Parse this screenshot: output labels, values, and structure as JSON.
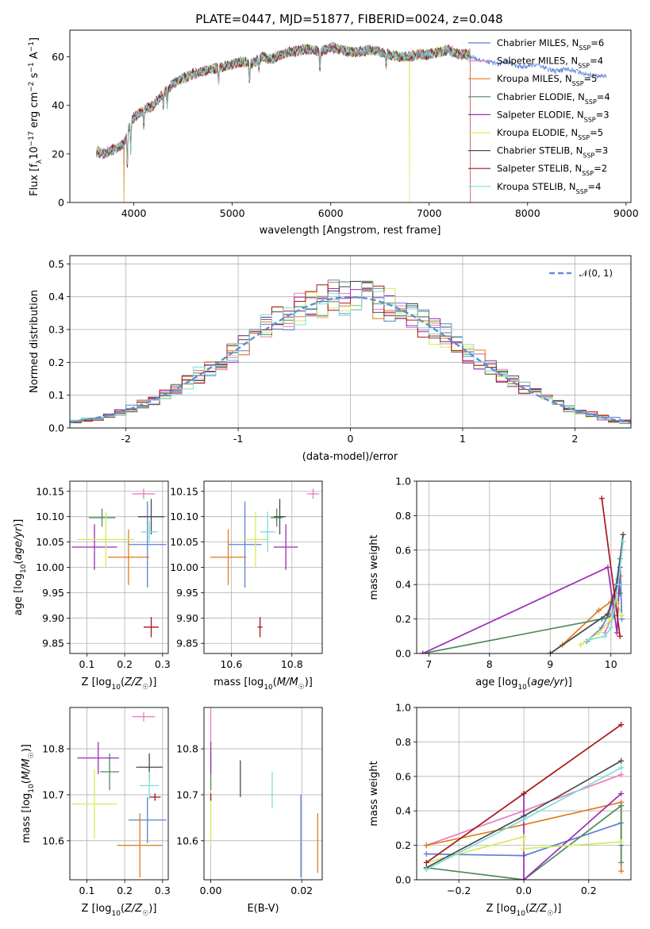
{
  "title": "PLATE=0447, MJD=51877, FIBERID=0024, z=0.048",
  "colors": [
    "#5b7fd6",
    "#e97ec0",
    "#e07c1a",
    "#4f8a5d",
    "#9b2bb5",
    "#d6ea5c",
    "#4a4a4a",
    "#a8161b",
    "#7fdcdc"
  ],
  "legend": [
    "Chabrier MILES, N_SSP=6",
    "Salpeter MILES, N_SSP=4",
    "Kroupa MILES, N_SSP=5",
    "Chabrier ELODIE, N_SSP=4",
    "Salpeter ELODIE, N_SSP=3",
    "Kroupa ELODIE, N_SSP=5",
    "Chabrier STELIB, N_SSP=3",
    "Salpeter STELIB, N_SSP=2",
    "Kroupa STELIB, N_SSP=4"
  ],
  "chart_data": [
    {
      "type": "line",
      "id": "spectrum",
      "xlabel": "wavelength [Angstrom, rest frame]",
      "ylabel": "Flux [f_λ10^-17 erg cm^-2 s^-1 A^-1]",
      "xlim": [
        3350,
        9050
      ],
      "ylim": [
        0,
        71
      ],
      "xticks": [
        4000,
        5000,
        6000,
        7000,
        8000,
        9000
      ],
      "yticks": [
        0,
        20,
        40,
        60
      ],
      "grid": false,
      "legend_position": "upper-right",
      "continuum": {
        "x": [
          3620,
          3700,
          3800,
          3900,
          3950,
          4000,
          4100,
          4200,
          4300,
          4400,
          4500,
          4600,
          4700,
          4800,
          4900,
          5000,
          5100,
          5200,
          5300,
          5400,
          5500,
          5600,
          5700,
          5800,
          5900,
          6000,
          6100,
          6200,
          6300,
          6400,
          6500,
          6600,
          6700,
          6800,
          6900,
          7000,
          7100,
          7200,
          7300,
          7420
        ],
        "y": [
          21,
          20,
          22,
          24,
          31,
          35,
          38,
          40,
          45,
          49,
          51,
          53,
          54,
          55,
          56,
          57,
          58,
          57,
          60,
          59,
          61,
          62,
          63,
          63,
          62,
          64,
          63,
          62,
          62,
          63,
          62,
          61,
          60,
          60,
          61,
          61,
          62,
          63,
          61,
          61
        ]
      },
      "series_extra": {
        "name": "Chabrier MILES, N_SSP=6",
        "x": [
          7420,
          7500,
          7600,
          7700,
          7800,
          7900,
          8000,
          8100,
          8200,
          8300,
          8400,
          8500,
          8600,
          8700,
          8800
        ],
        "y": [
          60,
          59,
          58,
          57,
          58,
          56,
          56,
          57,
          55,
          54,
          55,
          54,
          53,
          52,
          52
        ]
      },
      "dropouts": [
        {
          "series": 5,
          "x": 6800
        },
        {
          "series": 2,
          "x": 3900
        },
        {
          "series": 7,
          "x": 7420
        }
      ]
    },
    {
      "type": "histogram",
      "id": "residuals",
      "xlabel": "(data-model)/error",
      "ylabel": "Normed distribution",
      "xlim": [
        -2.5,
        2.5
      ],
      "ylim": [
        0,
        0.525
      ],
      "xticks": [
        -2,
        -1,
        0,
        1,
        2
      ],
      "yticks": [
        0.0,
        0.1,
        0.2,
        0.3,
        0.4,
        0.5
      ],
      "grid": true,
      "bin_width": 0.1,
      "reference_curve": {
        "name": "𝒩(0, 1)",
        "mean": 0,
        "sigma": 1,
        "color": "#5b8fd6"
      },
      "legend_position": "upper-right"
    },
    {
      "type": "errorbar",
      "id": "age-vs-Z",
      "xlabel": "Z [log10(Z/Z☉)]",
      "ylabel": "age [log10(age/yr)]",
      "xlim": [
        0.055,
        0.315
      ],
      "ylim": [
        9.83,
        10.17
      ],
      "xticks": [
        0.1,
        0.2,
        0.3
      ],
      "xticklabels": [
        "0.1",
        "0.2",
        "0.3"
      ],
      "yticks": [
        9.85,
        9.9,
        9.95,
        10.0,
        10.05,
        10.1,
        10.15
      ],
      "yticklabels": [
        "9.85",
        "9.90",
        "9.95",
        "10.00",
        "10.05",
        "10.10",
        "10.15"
      ],
      "grid": true,
      "points": [
        {
          "c": 0,
          "x": 0.26,
          "xerr": 0.05,
          "y": 10.045,
          "yerr": 0.085
        },
        {
          "c": 1,
          "x": 0.25,
          "xerr": 0.03,
          "y": 10.145,
          "yerr": 0.01
        },
        {
          "c": 2,
          "x": 0.21,
          "xerr": 0.055,
          "y": 10.02,
          "yerr": 0.055
        },
        {
          "c": 3,
          "x": 0.14,
          "xerr": 0.035,
          "y": 10.098,
          "yerr": 0.018
        },
        {
          "c": 4,
          "x": 0.12,
          "xerr": 0.06,
          "y": 10.04,
          "yerr": 0.045
        },
        {
          "c": 5,
          "x": 0.15,
          "xerr": 0.075,
          "y": 10.055,
          "yerr": 0.055
        },
        {
          "c": 6,
          "x": 0.27,
          "xerr": 0.035,
          "y": 10.1,
          "yerr": 0.035
        },
        {
          "c": 7,
          "x": 0.27,
          "xerr": 0.02,
          "y": 9.882,
          "yerr": 0.02
        },
        {
          "c": 8,
          "x": 0.265,
          "xerr": 0.022,
          "y": 10.07,
          "yerr": 0.022
        }
      ]
    },
    {
      "type": "errorbar",
      "id": "age-vs-mass",
      "xlabel": "mass [log10(M/M☉)]",
      "ylabel": "",
      "xlim": [
        10.51,
        10.9
      ],
      "ylim": [
        9.83,
        10.17
      ],
      "xticks": [
        10.6,
        10.8
      ],
      "xticklabels": [
        "10.6",
        "10.8"
      ],
      "yticks": [
        9.85,
        9.9,
        9.95,
        10.0,
        10.05,
        10.1,
        10.15
      ],
      "yticklabels": [
        "9.85",
        "9.90",
        "9.95",
        "10.00",
        "10.05",
        "10.10",
        "10.15"
      ],
      "grid": true,
      "points": [
        {
          "c": 0,
          "x": 10.645,
          "xerr": 0.055,
          "y": 10.045,
          "yerr": 0.085
        },
        {
          "c": 1,
          "x": 10.87,
          "xerr": 0.02,
          "y": 10.145,
          "yerr": 0.01
        },
        {
          "c": 2,
          "x": 10.59,
          "xerr": 0.06,
          "y": 10.02,
          "yerr": 0.055
        },
        {
          "c": 3,
          "x": 10.75,
          "xerr": 0.02,
          "y": 10.098,
          "yerr": 0.018
        },
        {
          "c": 4,
          "x": 10.78,
          "xerr": 0.04,
          "y": 10.04,
          "yerr": 0.045
        },
        {
          "c": 5,
          "x": 10.68,
          "xerr": 0.04,
          "y": 10.055,
          "yerr": 0.055
        },
        {
          "c": 6,
          "x": 10.76,
          "xerr": 0.02,
          "y": 10.1,
          "yerr": 0.035
        },
        {
          "c": 7,
          "x": 10.695,
          "xerr": 0.008,
          "y": 9.882,
          "yerr": 0.02
        },
        {
          "c": 8,
          "x": 10.72,
          "xerr": 0.025,
          "y": 10.07,
          "yerr": 0.04
        }
      ]
    },
    {
      "type": "line",
      "id": "weight-vs-age",
      "xlabel": "age [log10(age/yr)]",
      "ylabel": "mass weight",
      "xlim": [
        6.8,
        10.33
      ],
      "ylim": [
        0,
        1
      ],
      "xticks": [
        7,
        8,
        9,
        10
      ],
      "xticklabels": [
        "7",
        "8",
        "9",
        "10"
      ],
      "yticks": [
        0.0,
        0.2,
        0.4,
        0.6,
        0.8,
        1.0
      ],
      "yticklabels": [
        "0.0",
        "0.2",
        "0.4",
        "0.6",
        "0.8",
        "1.0"
      ],
      "grid": true,
      "series": [
        {
          "c": 0,
          "x": [
            9.6,
            9.85,
            9.95,
            10.05,
            10.15,
            10.18
          ],
          "y": [
            0.07,
            0.15,
            0.22,
            0.32,
            0.55,
            0.2
          ]
        },
        {
          "c": 1,
          "x": [
            9.9,
            10.0,
            10.1,
            10.18
          ],
          "y": [
            0.12,
            0.2,
            0.4,
            0.6
          ]
        },
        {
          "c": 2,
          "x": [
            9.0,
            9.2,
            9.8,
            10.0,
            10.15
          ],
          "y": [
            0.0,
            0.05,
            0.25,
            0.3,
            0.45
          ]
        },
        {
          "c": 3,
          "x": [
            6.9,
            9.85,
            10.05,
            10.12,
            10.15
          ],
          "y": [
            0.0,
            0.2,
            0.22,
            0.43,
            0.35
          ]
        },
        {
          "c": 4,
          "x": [
            6.9,
            9.95,
            10.1,
            10.15
          ],
          "y": [
            0.0,
            0.5,
            0.12,
            0.5
          ]
        },
        {
          "c": 5,
          "x": [
            9.5,
            9.8,
            10.0,
            10.1,
            10.18
          ],
          "y": [
            0.05,
            0.12,
            0.2,
            0.3,
            0.22
          ]
        },
        {
          "c": 6,
          "x": [
            9.0,
            9.95,
            10.1,
            10.2
          ],
          "y": [
            0.0,
            0.23,
            0.4,
            0.69
          ]
        },
        {
          "c": 7,
          "x": [
            9.85,
            10.15
          ],
          "y": [
            0.9,
            0.1
          ]
        },
        {
          "c": 8,
          "x": [
            9.65,
            9.9,
            10.0,
            10.12,
            10.2
          ],
          "y": [
            0.08,
            0.1,
            0.15,
            0.4,
            0.65
          ]
        }
      ]
    },
    {
      "type": "errorbar",
      "id": "mass-vs-Z",
      "xlabel": "Z [log10(Z/Z☉)]",
      "ylabel": "mass [log10(M/M☉)]",
      "xlim": [
        0.055,
        0.315
      ],
      "ylim": [
        10.515,
        10.89
      ],
      "xticks": [
        0.1,
        0.2,
        0.3
      ],
      "xticklabels": [
        "0.1",
        "0.2",
        "0.3"
      ],
      "yticks": [
        10.6,
        10.7,
        10.8
      ],
      "yticklabels": [
        "10.6",
        "10.7",
        "10.8"
      ],
      "grid": true,
      "points": [
        {
          "c": 0,
          "x": 0.26,
          "xerr": 0.05,
          "y": 10.645,
          "yerr": 0.05
        },
        {
          "c": 1,
          "x": 0.25,
          "xerr": 0.03,
          "y": 10.87,
          "yerr": 0.01
        },
        {
          "c": 2,
          "x": 0.24,
          "xerr": 0.06,
          "y": 10.59,
          "yerr": 0.07
        },
        {
          "c": 3,
          "x": 0.16,
          "xerr": 0.025,
          "y": 10.75,
          "yerr": 0.04
        },
        {
          "c": 4,
          "x": 0.13,
          "xerr": 0.055,
          "y": 10.78,
          "yerr": 0.035
        },
        {
          "c": 5,
          "x": 0.12,
          "xerr": 0.06,
          "y": 10.68,
          "yerr": 0.075
        },
        {
          "c": 6,
          "x": 0.265,
          "xerr": 0.035,
          "y": 10.76,
          "yerr": 0.03
        },
        {
          "c": 7,
          "x": 0.28,
          "xerr": 0.015,
          "y": 10.695,
          "yerr": 0.008
        },
        {
          "c": 8,
          "x": 0.265,
          "xerr": 0.025,
          "y": 10.72,
          "yerr": 0.03
        }
      ]
    },
    {
      "type": "errorbar",
      "id": "mass-vs-EBV",
      "xlabel": "E(B-V)",
      "ylabel": "",
      "xlim": [
        -0.0015,
        0.0245
      ],
      "ylim": [
        10.515,
        10.89
      ],
      "xticks": [
        0.0,
        0.02
      ],
      "xticklabels": [
        "0.00",
        "0.02"
      ],
      "yticks": [
        10.6,
        10.7,
        10.8
      ],
      "yticklabels": [
        "10.6",
        "10.7",
        "10.8"
      ],
      "grid": true,
      "points": [
        {
          "c": 0,
          "x": 0.0198,
          "xerr": 0,
          "y": 10.61,
          "yerr": 0.09
        },
        {
          "c": 1,
          "x": 0.0,
          "xerr": 0,
          "y": 10.85,
          "yerr": 0.04
        },
        {
          "c": 2,
          "x": 0.0235,
          "xerr": 0,
          "y": 10.595,
          "yerr": 0.065
        },
        {
          "c": 3,
          "x": 0.0,
          "xerr": 0,
          "y": 10.75,
          "yerr": 0.04
        },
        {
          "c": 4,
          "x": 0.0,
          "xerr": 0,
          "y": 10.78,
          "yerr": 0.035
        },
        {
          "c": 5,
          "x": 0.0,
          "xerr": 0,
          "y": 10.645,
          "yerr": 0.055
        },
        {
          "c": 6,
          "x": 0.0065,
          "xerr": 0,
          "y": 10.735,
          "yerr": 0.04
        },
        {
          "c": 7,
          "x": 0.0,
          "xerr": 0,
          "y": 10.695,
          "yerr": 0.008
        },
        {
          "c": 8,
          "x": 0.0135,
          "xerr": 0,
          "y": 10.71,
          "yerr": 0.04
        }
      ]
    },
    {
      "type": "line",
      "id": "weight-vs-Z",
      "xlabel": "Z [log10(Z/Z☉)]",
      "ylabel": "mass weight",
      "xlim": [
        -0.33,
        0.33
      ],
      "ylim": [
        0,
        1
      ],
      "xticks": [
        -0.2,
        0.0,
        0.2
      ],
      "xticklabels": [
        "−0.2",
        "0.0",
        "0.2"
      ],
      "yticks": [
        0.0,
        0.2,
        0.4,
        0.6,
        0.8,
        1.0
      ],
      "yticklabels": [
        "0.0",
        "0.2",
        "0.4",
        "0.6",
        "0.8",
        "1.0"
      ],
      "grid": true,
      "series": [
        {
          "c": 0,
          "x": [
            -0.3,
            0.0,
            0.0,
            0.3,
            0.3
          ],
          "y": [
            0.15,
            0.14,
            0.14,
            0.33,
            0.2
          ]
        },
        {
          "c": 1,
          "x": [
            -0.3,
            0.0,
            0.3
          ],
          "y": [
            0.2,
            0.4,
            0.61
          ]
        },
        {
          "c": 2,
          "x": [
            -0.3,
            0.0,
            0.3,
            0.3
          ],
          "y": [
            0.2,
            0.32,
            0.45,
            0.05
          ]
        },
        {
          "c": 3,
          "x": [
            -0.3,
            0.0,
            0.3,
            0.3
          ],
          "y": [
            0.07,
            0.0,
            0.43,
            0.1
          ]
        },
        {
          "c": 4,
          "x": [
            0.0,
            0.0,
            0.3
          ],
          "y": [
            0.5,
            0.0,
            0.5
          ]
        },
        {
          "c": 5,
          "x": [
            -0.3,
            0.0,
            0.0,
            0.3
          ],
          "y": [
            0.1,
            0.25,
            0.18,
            0.22
          ]
        },
        {
          "c": 6,
          "x": [
            -0.3,
            0.0,
            0.3
          ],
          "y": [
            0.07,
            0.37,
            0.69
          ]
        },
        {
          "c": 7,
          "x": [
            -0.3,
            0.0,
            0.3
          ],
          "y": [
            0.1,
            0.5,
            0.9
          ]
        },
        {
          "c": 8,
          "x": [
            -0.3,
            0.0,
            0.3
          ],
          "y": [
            0.06,
            0.35,
            0.65
          ]
        }
      ]
    }
  ]
}
